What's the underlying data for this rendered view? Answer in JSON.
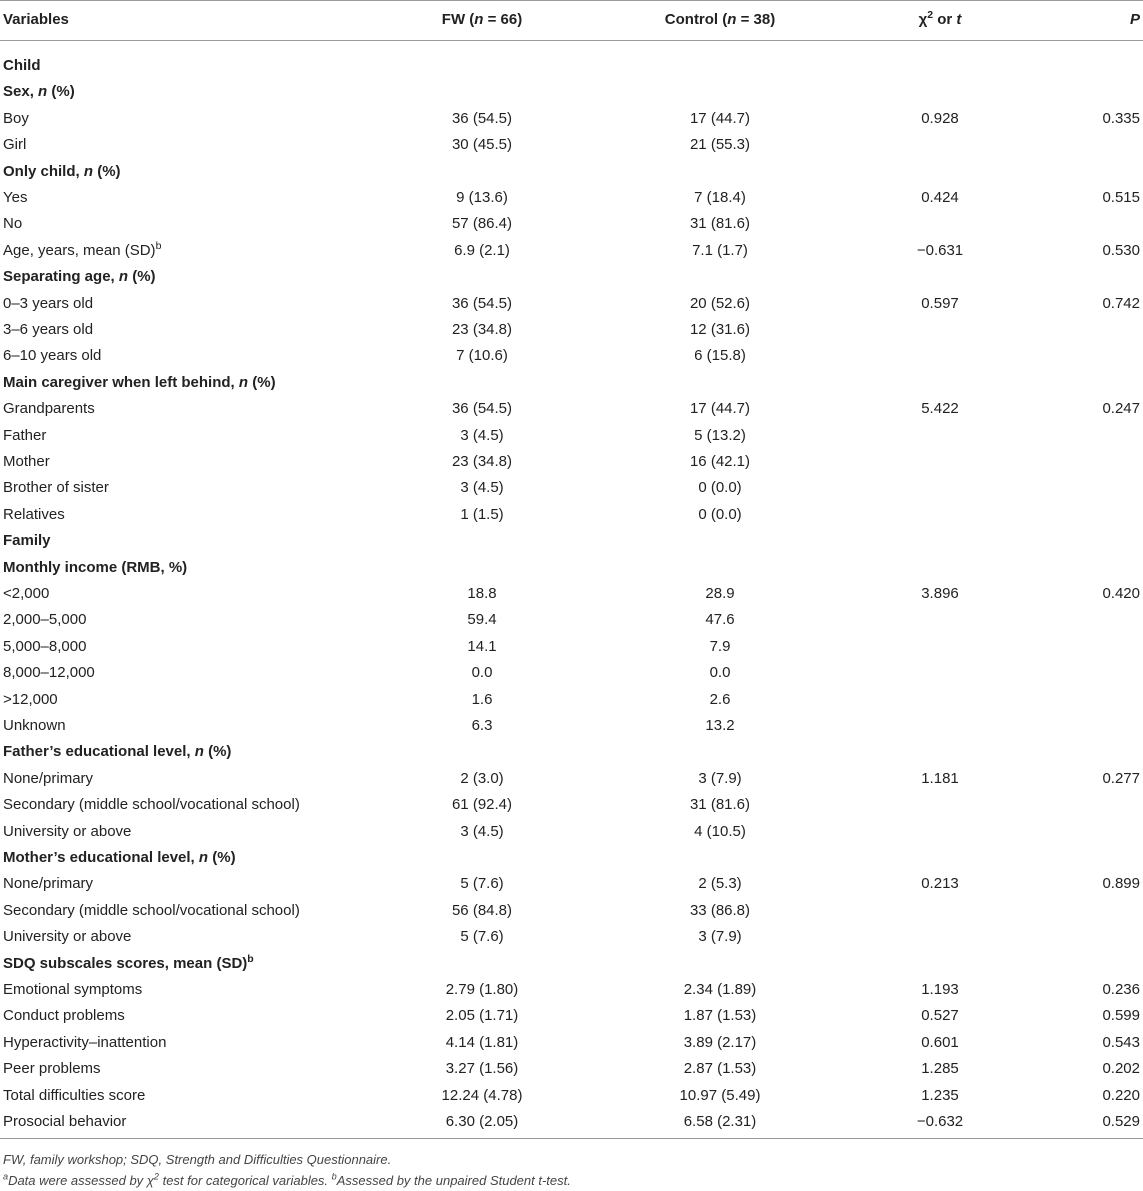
{
  "table": {
    "header": [
      "Variables",
      [
        "FW (",
        {
          "i": "n"
        },
        " = 66)"
      ],
      [
        "Control (",
        {
          "i": "n"
        },
        " = 38)"
      ],
      [
        "χ",
        {
          "sup": "2"
        },
        " or ",
        {
          "i": "t"
        }
      ],
      [
        {
          "i": "P"
        }
      ]
    ],
    "rows": [
      [
        "Child"
      ],
      [
        [
          "Sex, ",
          {
            "i": "n"
          },
          " (%)"
        ]
      ],
      [
        "Boy",
        "36 (54.5)",
        "17 (44.7)",
        "0.928",
        "0.335"
      ],
      [
        "Girl",
        "30 (45.5)",
        "21 (55.3)"
      ],
      [
        [
          "Only child, ",
          {
            "i": "n"
          },
          " (%)"
        ]
      ],
      [
        "Yes",
        "9 (13.6)",
        "7 (18.4)",
        "0.424",
        "0.515"
      ],
      [
        "No",
        "57 (86.4)",
        "31 (81.6)"
      ],
      [
        [
          "Age, years, mean (SD)",
          {
            "sup": "b"
          }
        ],
        "6.9 (2.1)",
        "7.1 (1.7)",
        "−0.631",
        "0.530"
      ],
      [
        [
          "Separating age, ",
          {
            "i": "n"
          },
          " (%)"
        ]
      ],
      [
        "0–3 years old",
        "36 (54.5)",
        "20 (52.6)",
        "0.597",
        "0.742"
      ],
      [
        "3–6 years old",
        "23 (34.8)",
        "12 (31.6)"
      ],
      [
        "6–10 years old",
        "7 (10.6)",
        "6 (15.8)"
      ],
      [
        [
          "Main caregiver when left behind, ",
          {
            "i": "n"
          },
          " (%)"
        ]
      ],
      [
        "Grandparents",
        "36 (54.5)",
        "17 (44.7)",
        "5.422",
        "0.247"
      ],
      [
        "Father",
        "3 (4.5)",
        "5 (13.2)"
      ],
      [
        "Mother",
        "23 (34.8)",
        "16 (42.1)"
      ],
      [
        "Brother of sister",
        "3 (4.5)",
        "0 (0.0)"
      ],
      [
        "Relatives",
        "1 (1.5)",
        "0 (0.0)"
      ],
      [
        "Family"
      ],
      [
        "Monthly income (RMB, %)"
      ],
      [
        "<2,000",
        "18.8",
        "28.9",
        "3.896",
        "0.420"
      ],
      [
        "2,000–5,000",
        "59.4",
        "47.6"
      ],
      [
        "5,000–8,000",
        "14.1",
        "7.9"
      ],
      [
        "8,000–12,000",
        "0.0",
        "0.0"
      ],
      [
        ">12,000",
        "1.6",
        "2.6"
      ],
      [
        "Unknown",
        "6.3",
        "13.2"
      ],
      [
        [
          "Father’s educational level, ",
          {
            "i": "n"
          },
          " (%)"
        ]
      ],
      [
        "None/primary",
        "2 (3.0)",
        "3 (7.9)",
        "1.181",
        "0.277"
      ],
      [
        "Secondary (middle school/vocational school)",
        "61 (92.4)",
        "31 (81.6)"
      ],
      [
        "University or above",
        "3 (4.5)",
        "4 (10.5)"
      ],
      [
        [
          "Mother’s educational level, ",
          {
            "i": "n"
          },
          " (%)"
        ]
      ],
      [
        "None/primary",
        "5 (7.6)",
        "2 (5.3)",
        "0.213",
        "0.899"
      ],
      [
        "Secondary (middle school/vocational school)",
        "56 (84.8)",
        "33 (86.8)"
      ],
      [
        "University or above",
        "5 (7.6)",
        "3 (7.9)"
      ],
      [
        [
          "SDQ subscales scores, mean (SD)",
          {
            "sup": "b"
          }
        ]
      ],
      [
        "Emotional symptoms",
        "2.79 (1.80)",
        "2.34 (1.89)",
        "1.193",
        "0.236"
      ],
      [
        "Conduct problems",
        "2.05 (1.71)",
        "1.87 (1.53)",
        "0.527",
        "0.599"
      ],
      [
        "Hyperactivity–inattention",
        "4.14 (1.81)",
        "3.89 (2.17)",
        "0.601",
        "0.543"
      ],
      [
        "Peer problems",
        "3.27 (1.56)",
        "2.87 (1.53)",
        "1.285",
        "0.202"
      ],
      [
        "Total difficulties score",
        "12.24 (4.78)",
        "10.97 (5.49)",
        "1.235",
        "0.220"
      ],
      [
        "Prosocial behavior",
        "6.30 (2.05)",
        "6.58 (2.31)",
        "−0.632",
        "0.529"
      ]
    ],
    "footnotes": [
      [
        "FW, family workshop; SDQ, Strength and Difficulties Questionnaire."
      ],
      [
        {
          "sup": "a"
        },
        "Data were assessed by χ",
        {
          "sup": "2"
        },
        " test for categorical variables. ",
        {
          "sup": "b"
        },
        "Assessed by the unpaired Student t-test."
      ]
    ]
  }
}
